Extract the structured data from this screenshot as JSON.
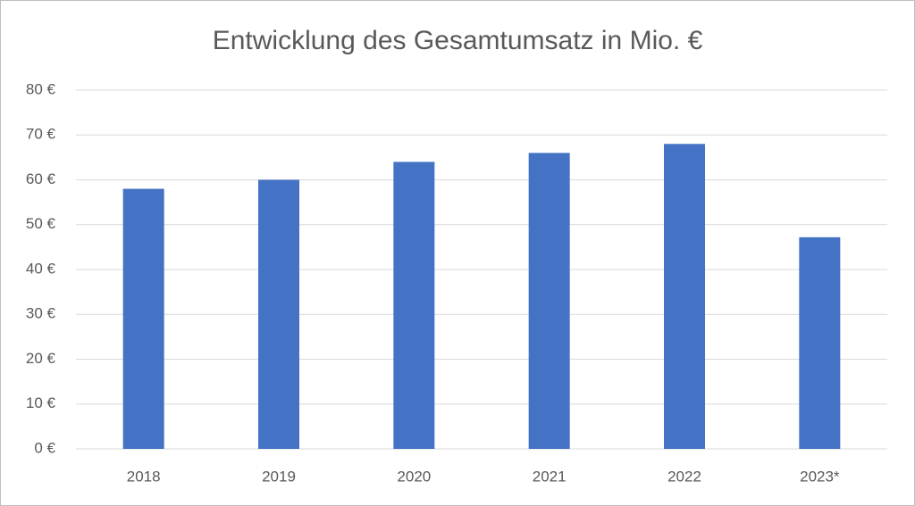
{
  "chart_data": {
    "type": "bar",
    "title": "Entwicklung des Gesamtumsatz in Mio. €",
    "categories": [
      "2018",
      "2019",
      "2020",
      "2021",
      "2022",
      "2023*"
    ],
    "values": [
      58,
      60,
      64,
      66,
      68,
      47.2
    ],
    "color": "#4472c4",
    "ylim": [
      0,
      80
    ],
    "yticks": [
      {
        "value": 0,
        "label": "0 €"
      },
      {
        "value": 10,
        "label": "10 €"
      },
      {
        "value": 20,
        "label": "20 €"
      },
      {
        "value": 30,
        "label": "30 €"
      },
      {
        "value": 40,
        "label": "40 €"
      },
      {
        "value": 50,
        "label": "50 €"
      },
      {
        "value": 60,
        "label": "60 €"
      },
      {
        "value": 70,
        "label": "70 €"
      },
      {
        "value": 80,
        "label": "80 €"
      }
    ],
    "grid": true
  }
}
